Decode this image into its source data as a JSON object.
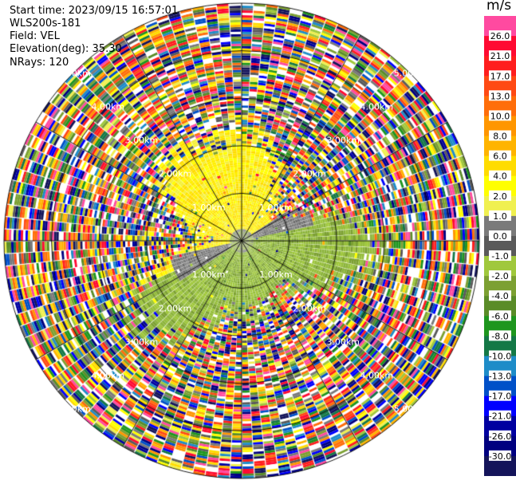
{
  "header": {
    "start_time": "Start time: 2023/09/15 16:57:01",
    "instrument": "WLS200s-181",
    "field": "Field: VEL",
    "elevation": "Elevation(deg): 35.30",
    "nrays": "NRays: 120"
  },
  "range_rings": {
    "labels": [
      "1.00km",
      "2.00km",
      "3.00km",
      "4.00km",
      "5.00km"
    ]
  },
  "colorbar": {
    "unit": "m/s",
    "ticks": [
      "26.0",
      "21.0",
      "17.0",
      "13.0",
      "10.0",
      "8.0",
      "6.0",
      "4.0",
      "2.0",
      "1.0",
      "0.0",
      "-1.0",
      "-2.0",
      "-4.0",
      "-6.0",
      "-8.0",
      "-10.0",
      "-13.0",
      "-17.0",
      "-21.0",
      "-26.0",
      "-30.0"
    ],
    "colors": [
      "#ff4aa0",
      "#ff0a32",
      "#ff1e1e",
      "#ff4a14",
      "#ff6e0a",
      "#ff9600",
      "#ffb400",
      "#ffdc00",
      "#ffff00",
      "#f0f050",
      "#7a7a7a",
      "#5a5a5a",
      "#a0c83c",
      "#7ca032",
      "#5a8c28",
      "#1e961e",
      "#147846",
      "#1e8cc8",
      "#0050c8",
      "#0000ff",
      "#0000a0",
      "#000080",
      "#14145a"
    ]
  }
}
